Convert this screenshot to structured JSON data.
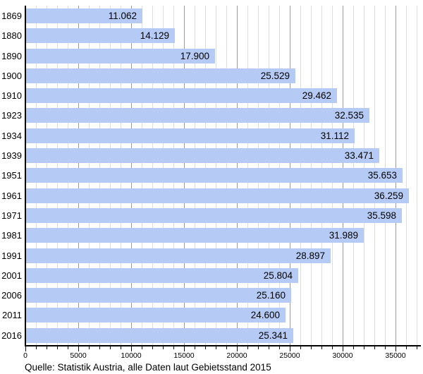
{
  "caption": "Quelle: Statistik Austria, alle Daten laut Gebietsstand 2015",
  "chart_data": {
    "type": "bar",
    "orientation": "horizontal",
    "title": "",
    "xlabel": "",
    "ylabel": "",
    "categories": [
      "1869",
      "1880",
      "1890",
      "1900",
      "1910",
      "1923",
      "1934",
      "1939",
      "1951",
      "1961",
      "1971",
      "1981",
      "1991",
      "2001",
      "2006",
      "2011",
      "2016"
    ],
    "values": [
      11062,
      14129,
      17900,
      25529,
      29462,
      32535,
      31112,
      33471,
      35653,
      36259,
      35598,
      31989,
      28897,
      25804,
      25160,
      24600,
      25341
    ],
    "value_labels": [
      "11.062",
      "14.129",
      "17.900",
      "25.529",
      "29.462",
      "32.535",
      "31.112",
      "33.471",
      "35.653",
      "36.259",
      "35.598",
      "31.989",
      "28.897",
      "25.804",
      "25.160",
      "24.600",
      "25.341"
    ],
    "xlim": [
      0,
      37000
    ],
    "x_major_ticks": [
      0,
      5000,
      10000,
      15000,
      20000,
      25000,
      30000,
      35000
    ],
    "x_tick_labels": [
      "0",
      "5000",
      "10000",
      "15000",
      "20000",
      "25000",
      "30000",
      "35000"
    ],
    "x_minor_step": 1000,
    "grid": true,
    "legend": null,
    "bar_color": "#b5cbf5",
    "minor_grid_color": "#dedede",
    "major_grid_color": "#9a9a9a",
    "axis_color": "#000000"
  }
}
